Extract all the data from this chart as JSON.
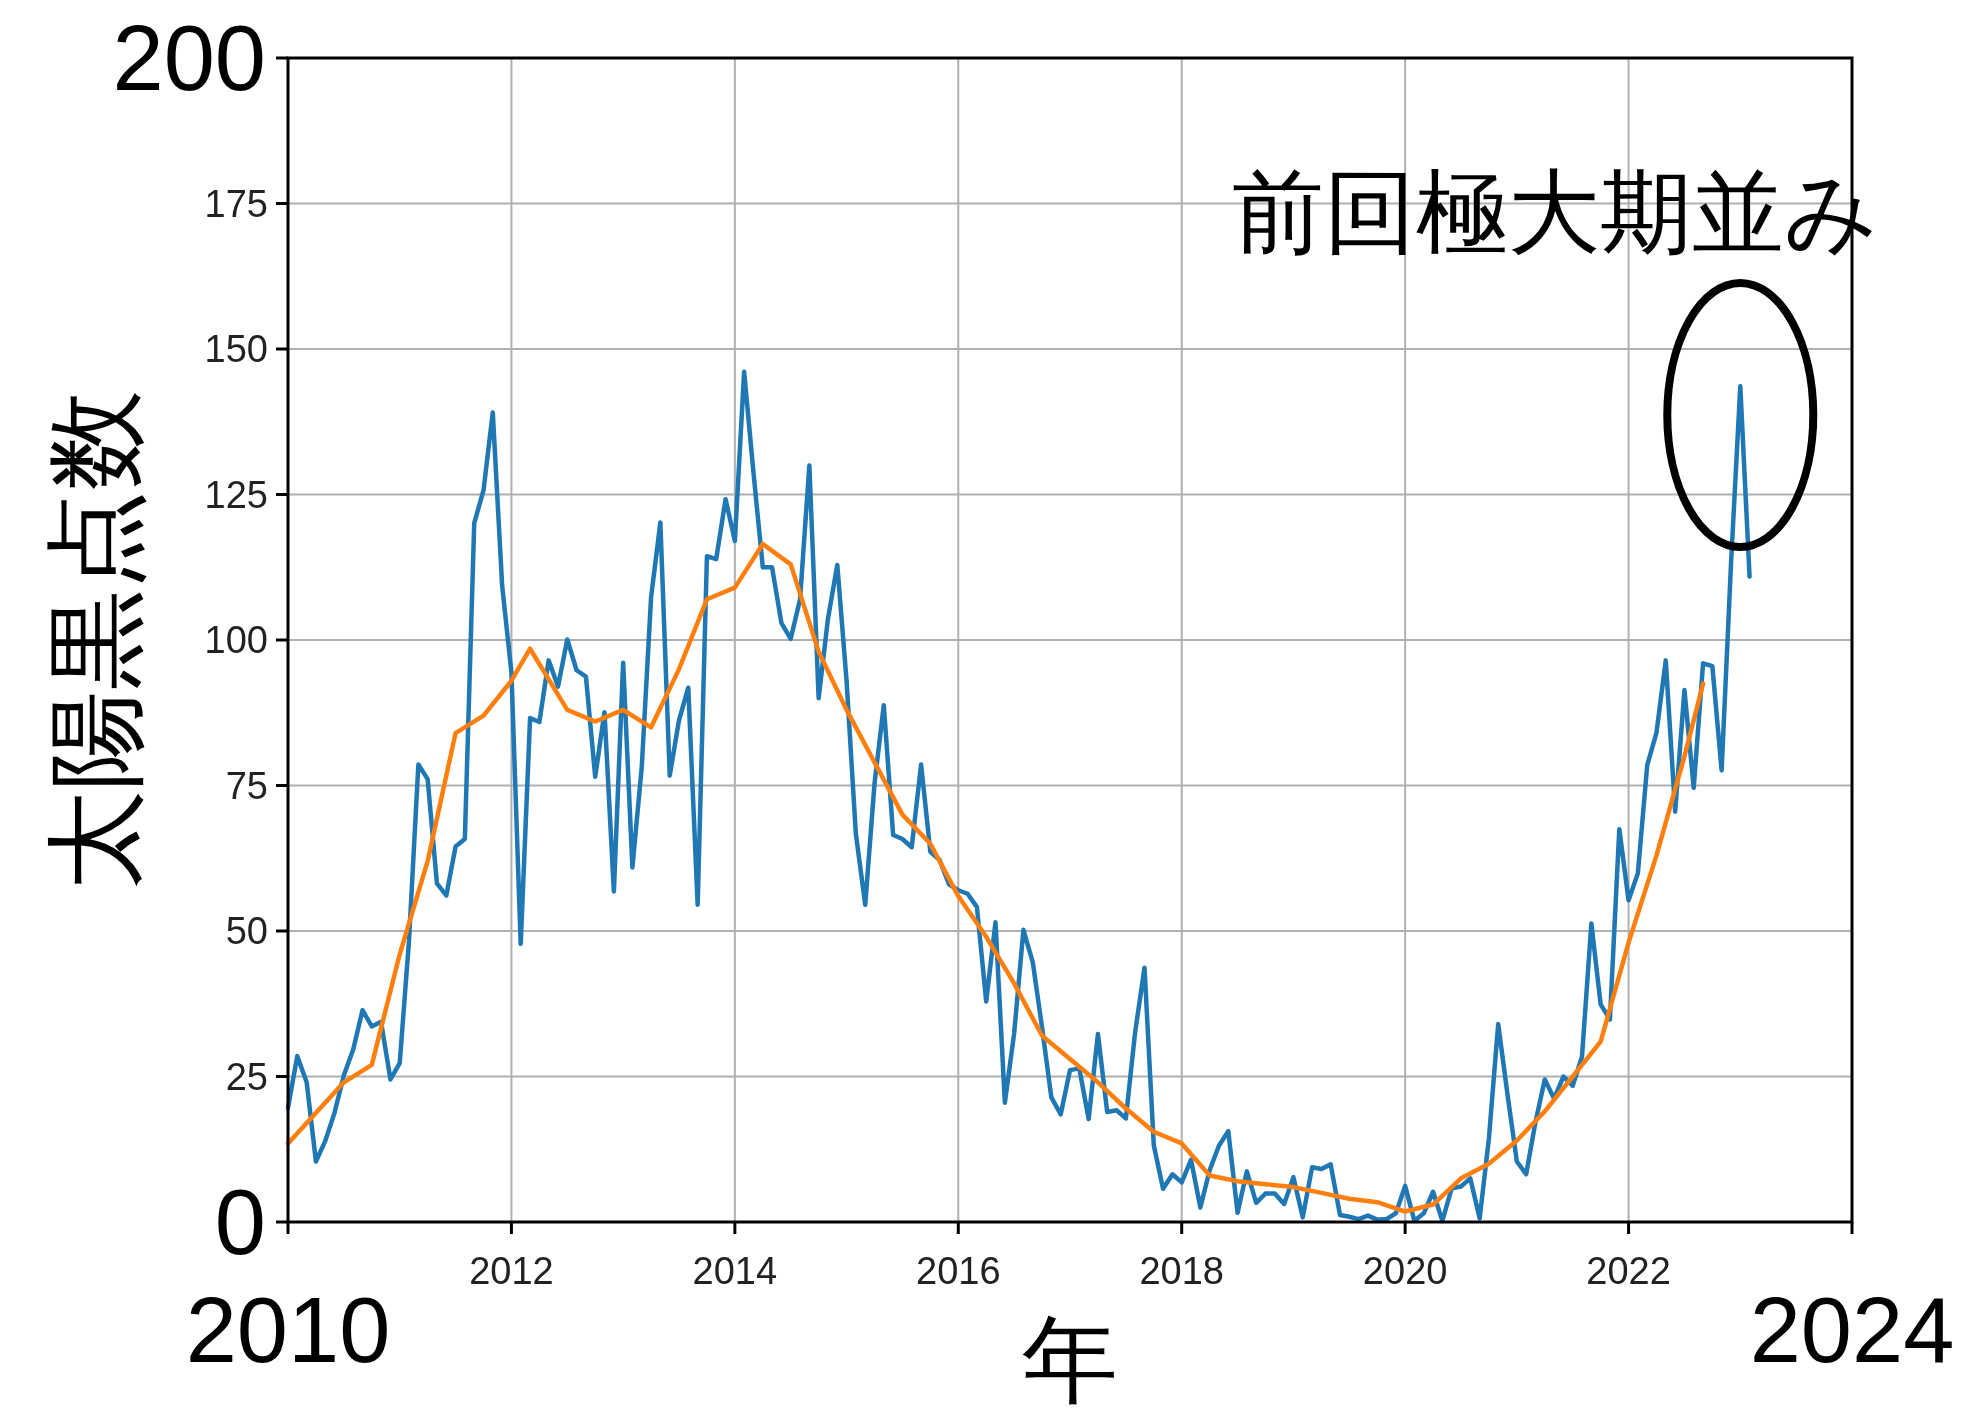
{
  "chart_data": {
    "type": "line",
    "xlabel": "年",
    "ylabel": "太陽黒点数",
    "xlim": [
      2010,
      2024
    ],
    "xticks": [
      {
        "value": 2010,
        "label": null
      },
      2012,
      2014,
      2016,
      2018,
      2020,
      2022,
      {
        "value": 2024,
        "label": null
      }
    ],
    "ylim": [
      0,
      200
    ],
    "yticks": [
      {
        "value": 0,
        "label": null
      },
      25,
      50,
      75,
      100,
      125,
      150,
      175,
      {
        "value": 200,
        "label": null
      }
    ],
    "grid": true,
    "annotations": [
      {
        "text": "前回極大期並み",
        "x": 2023.0,
        "y": 144
      },
      "2010",
      "2024",
      "0",
      "200"
    ],
    "series": [
      {
        "color": "#1f77b4",
        "x": [
          2010,
          2010.083,
          2010.167,
          2010.25,
          2010.333,
          2010.417,
          2010.5,
          2010.583,
          2010.667,
          2010.75,
          2010.833,
          2010.917,
          2011,
          2011.083,
          2011.167,
          2011.25,
          2011.333,
          2011.417,
          2011.5,
          2011.583,
          2011.667,
          2011.75,
          2011.833,
          2011.917,
          2012,
          2012.083,
          2012.167,
          2012.25,
          2012.333,
          2012.417,
          2012.5,
          2012.583,
          2012.667,
          2012.75,
          2012.833,
          2012.917,
          2013,
          2013.083,
          2013.167,
          2013.25,
          2013.333,
          2013.417,
          2013.5,
          2013.583,
          2013.667,
          2013.75,
          2013.833,
          2013.917,
          2014,
          2014.083,
          2014.167,
          2014.25,
          2014.333,
          2014.417,
          2014.5,
          2014.583,
          2014.667,
          2014.75,
          2014.833,
          2014.917,
          2015,
          2015.083,
          2015.167,
          2015.25,
          2015.333,
          2015.417,
          2015.5,
          2015.583,
          2015.667,
          2015.75,
          2015.833,
          2015.917,
          2016,
          2016.083,
          2016.167,
          2016.25,
          2016.333,
          2016.417,
          2016.5,
          2016.583,
          2016.667,
          2016.75,
          2016.833,
          2016.917,
          2017,
          2017.083,
          2017.167,
          2017.25,
          2017.333,
          2017.417,
          2017.5,
          2017.583,
          2017.667,
          2017.75,
          2017.833,
          2017.917,
          2018,
          2018.083,
          2018.167,
          2018.25,
          2018.333,
          2018.417,
          2018.5,
          2018.583,
          2018.667,
          2018.75,
          2018.833,
          2018.917,
          2019,
          2019.083,
          2019.167,
          2019.25,
          2019.333,
          2019.417,
          2019.5,
          2019.583,
          2019.667,
          2019.75,
          2019.833,
          2019.917,
          2020,
          2020.083,
          2020.167,
          2020.25,
          2020.333,
          2020.417,
          2020.5,
          2020.583,
          2020.667,
          2020.75,
          2020.833,
          2020.917,
          2021,
          2021.083,
          2021.167,
          2021.25,
          2021.333,
          2021.417,
          2021.5,
          2021.583,
          2021.667,
          2021.75,
          2021.833,
          2021.917,
          2022,
          2022.083,
          2022.167,
          2022.25,
          2022.333,
          2022.417,
          2022.5,
          2022.583,
          2022.667,
          2022.75,
          2022.833,
          2022.917,
          2023,
          2023.083
        ],
        "values": [
          19.6,
          28.5,
          24.0,
          10.4,
          13.9,
          18.8,
          25.2,
          29.6,
          36.4,
          33.6,
          34.4,
          24.5,
          27.3,
          48.3,
          78.6,
          76.1,
          58.2,
          56.1,
          64.5,
          65.8,
          120.1,
          125.7,
          139.1,
          109.3,
          94.4,
          47.8,
          86.6,
          85.9,
          96.5,
          92.0,
          100.1,
          94.8,
          93.7,
          76.5,
          87.6,
          56.8,
          96.1,
          60.9,
          78.3,
          107.3,
          120.2,
          76.7,
          86.2,
          91.8,
          54.5,
          114.4,
          113.9,
          124.2,
          117.0,
          146.1,
          128.7,
          112.5,
          112.5,
          102.9,
          100.2,
          106.9,
          130.0,
          90.0,
          103.6,
          112.9,
          93.0,
          66.7,
          54.5,
          75.3,
          88.8,
          66.5,
          65.8,
          64.4,
          78.6,
          63.6,
          62.2,
          58.0,
          57.0,
          56.4,
          54.1,
          37.9,
          51.5,
          20.5,
          32.4,
          50.2,
          44.6,
          33.4,
          21.4,
          18.5,
          26.1,
          26.4,
          17.7,
          32.3,
          18.9,
          19.2,
          17.8,
          32.6,
          43.7,
          13.2,
          5.7,
          8.2,
          6.8,
          10.7,
          2.5,
          8.9,
          13.1,
          15.6,
          1.6,
          8.7,
          3.3,
          4.9,
          4.9,
          3.1,
          7.7,
          0.8,
          9.4,
          9.1,
          9.9,
          1.2,
          0.9,
          0.5,
          1.1,
          0.4,
          0.5,
          1.5,
          6.2,
          0.2,
          1.5,
          5.2,
          0.2,
          5.8,
          6.1,
          7.5,
          0.6,
          14.4,
          34.0,
          21.8,
          10.4,
          8.2,
          17.2,
          24.5,
          21.2,
          25.0,
          23.4,
          28.4,
          51.3,
          37.4,
          34.8,
          67.5,
          55.3,
          59.9,
          78.5,
          84.1,
          96.5,
          70.5,
          91.4,
          74.6,
          96.0,
          95.5,
          77.6,
          113.1,
          143.6,
          110.9
        ]
      },
      {
        "color": "#ff7f0e",
        "x": [
          2010,
          2010.5,
          2010.75,
          2011,
          2011.25,
          2011.5,
          2011.75,
          2012,
          2012.167,
          2012.5,
          2012.75,
          2013,
          2013.25,
          2013.5,
          2013.75,
          2014,
          2014.25,
          2014.5,
          2014.75,
          2015,
          2015.25,
          2015.5,
          2015.75,
          2016,
          2016.25,
          2016.5,
          2016.75,
          2017,
          2017.25,
          2017.5,
          2017.75,
          2018,
          2018.25,
          2018.5,
          2018.75,
          2019,
          2019.25,
          2019.5,
          2019.75,
          2020,
          2020.25,
          2020.5,
          2020.75,
          2021,
          2021.25,
          2021.5,
          2021.75,
          2022,
          2022.25,
          2022.5,
          2022.667
        ],
        "values": [
          13.5,
          24,
          27,
          46,
          62,
          84,
          87,
          93,
          98.5,
          88,
          86,
          88,
          85,
          95,
          107,
          109,
          116.5,
          113,
          98,
          88,
          79,
          70,
          65,
          56,
          49,
          41,
          32,
          28,
          24,
          19.5,
          15.5,
          13.5,
          8,
          7,
          6.5,
          6,
          5,
          4,
          3.4,
          1.8,
          3,
          7.5,
          10,
          14,
          19,
          25,
          31,
          48,
          63,
          80,
          92.5
        ]
      }
    ]
  }
}
